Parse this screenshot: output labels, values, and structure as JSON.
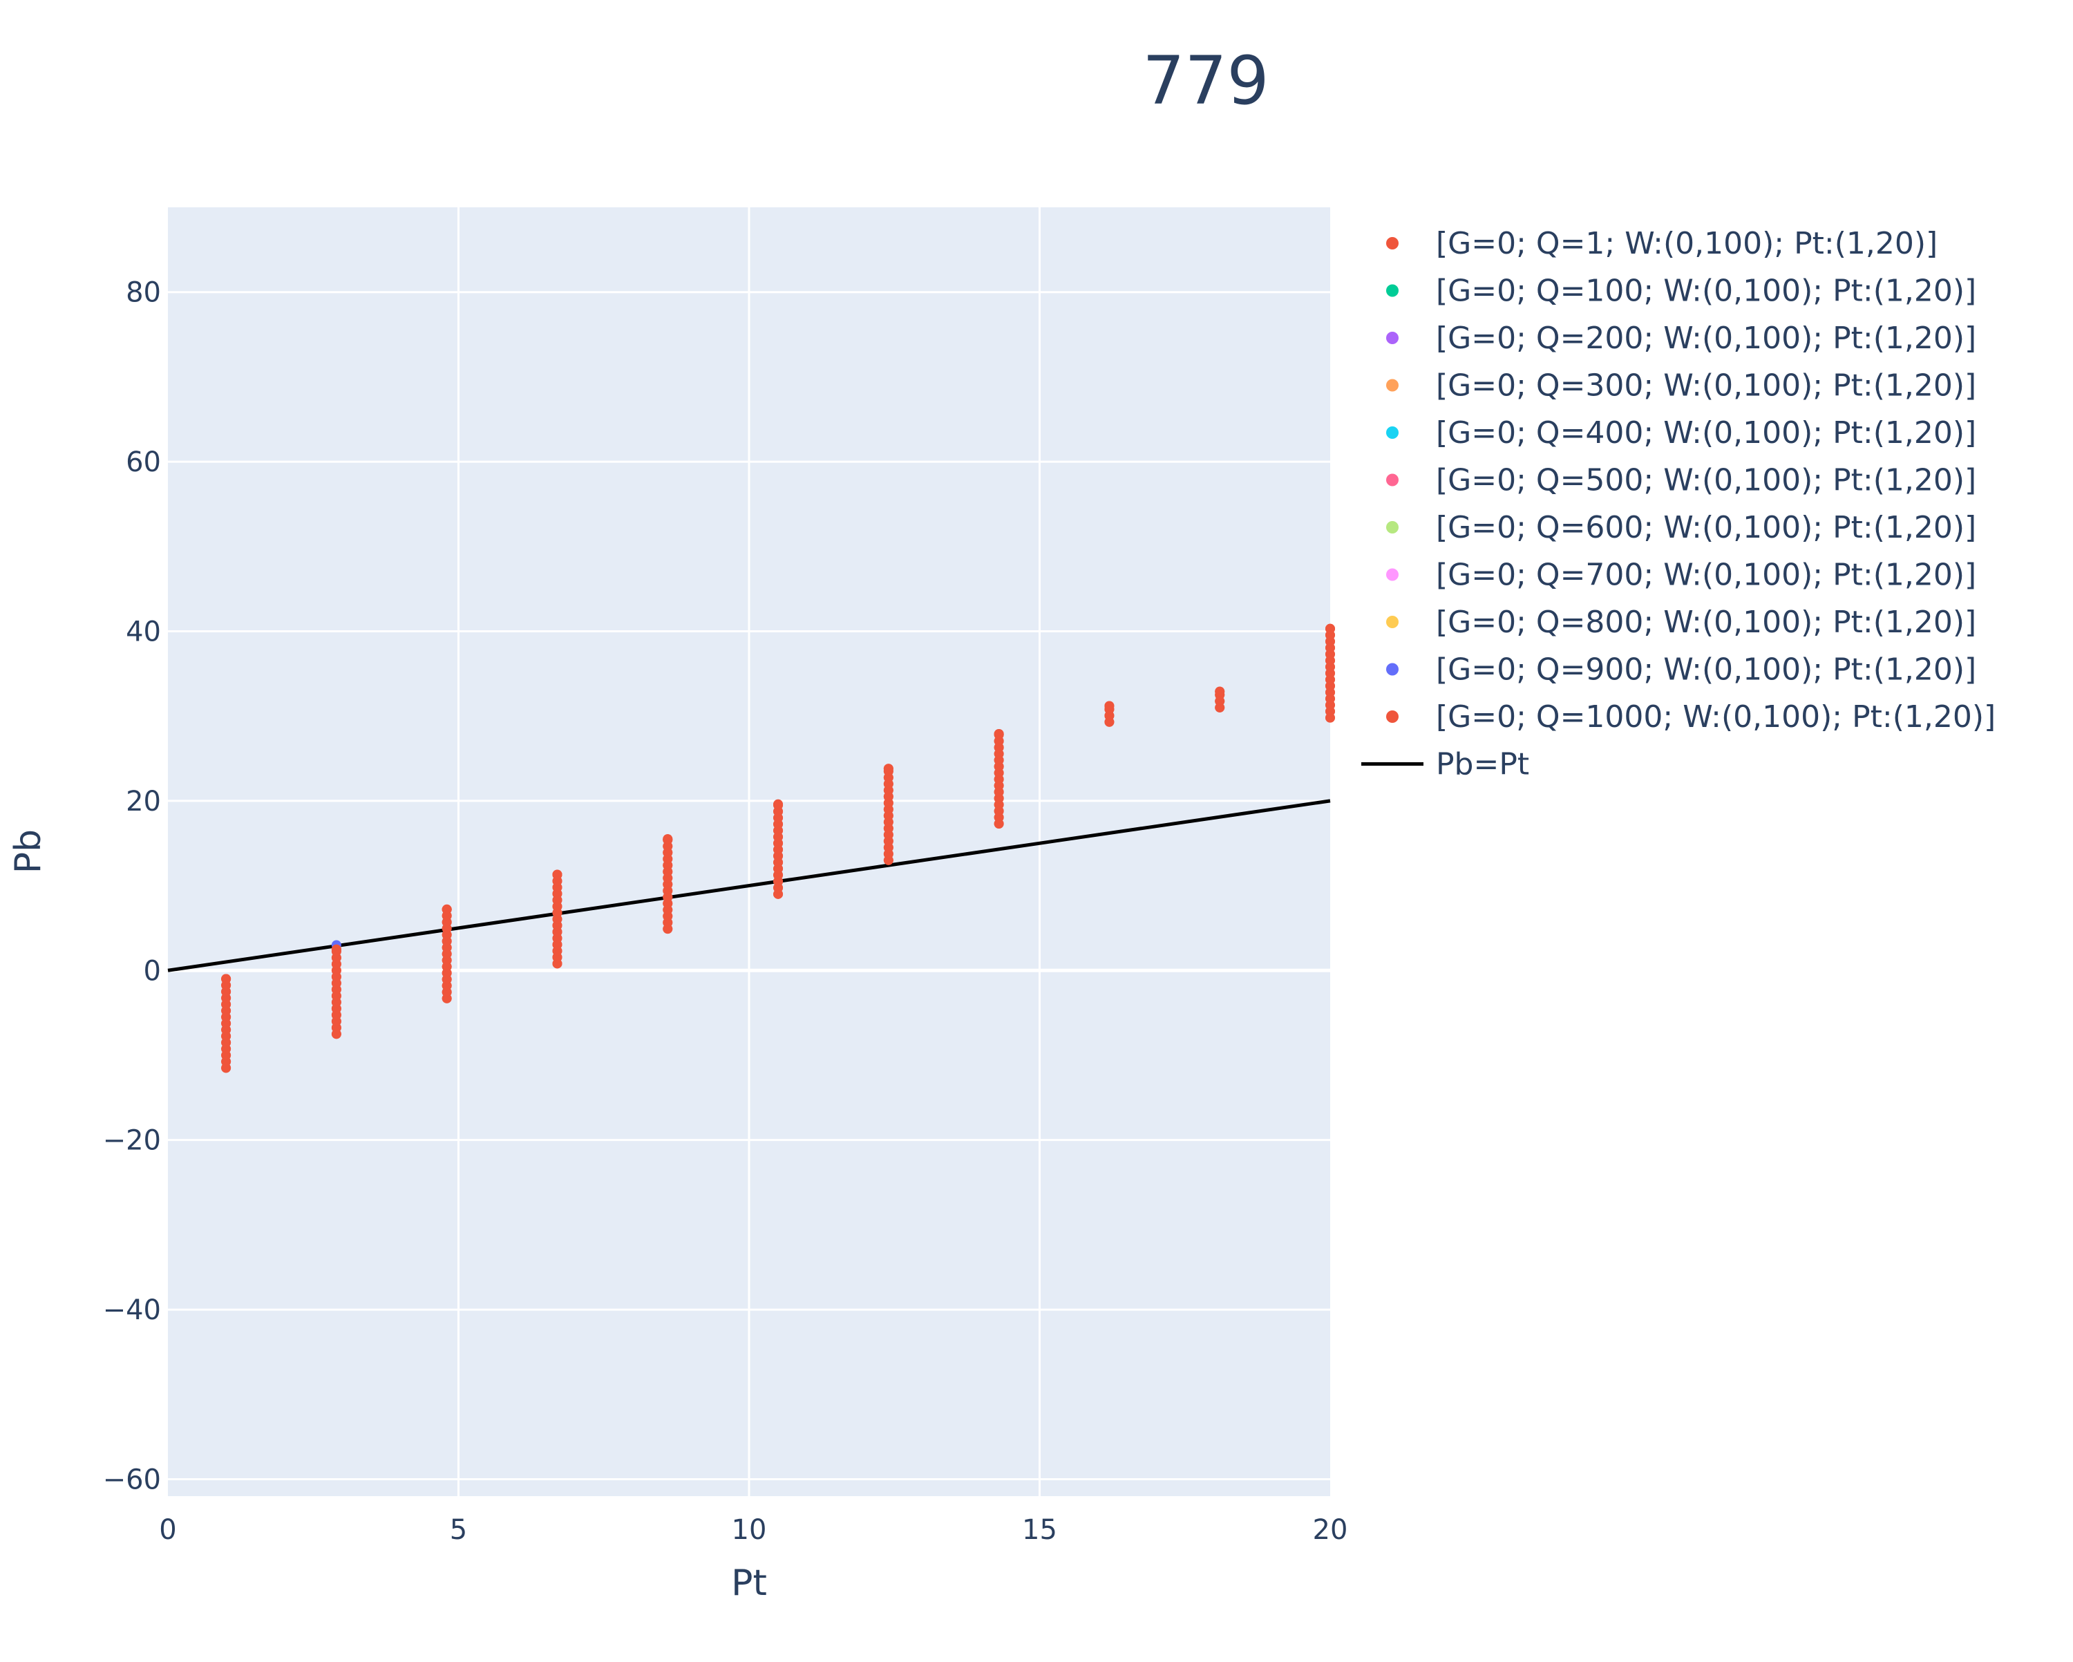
{
  "chart_data": {
    "type": "scatter",
    "title": "779",
    "xlabel": "Pt",
    "ylabel": "Pb",
    "xlim": [
      0,
      20
    ],
    "ylim": [
      -62,
      90
    ],
    "x_ticks": [
      0,
      5,
      10,
      15,
      20
    ],
    "y_ticks": [
      -60,
      -40,
      -20,
      0,
      20,
      40,
      60,
      80
    ],
    "x_tick_labels": [
      "0",
      "5",
      "10",
      "15",
      "20"
    ],
    "y_tick_labels": [
      "−60",
      "−40",
      "−20",
      "0",
      "20",
      "40",
      "60",
      "80"
    ],
    "grid": true,
    "legend_position": "right",
    "plot_background": "#e5ecf6",
    "series": [
      {
        "name": "[G=0; Q=1; W:(0,100); Pt:(1,20)]",
        "color": "#EF553B",
        "mode": "markers",
        "columns": [
          {
            "x": 1.0,
            "y_min": -11.5,
            "y_max": -1.0
          },
          {
            "x": 2.9,
            "y_min": -7.5,
            "y_max": 2.5
          },
          {
            "x": 4.8,
            "y_min": -3.3,
            "y_max": 7.2
          },
          {
            "x": 6.7,
            "y_min": 0.8,
            "y_max": 11.3
          },
          {
            "x": 8.6,
            "y_min": 4.9,
            "y_max": 15.5
          },
          {
            "x": 10.5,
            "y_min": 9.0,
            "y_max": 19.6
          },
          {
            "x": 12.4,
            "y_min": 13.0,
            "y_max": 23.8
          },
          {
            "x": 14.3,
            "y_min": 17.3,
            "y_max": 27.9
          },
          {
            "x": 16.2,
            "y_min": 29.3,
            "y_max": 31.2
          },
          {
            "x": 18.1,
            "y_min": 31.0,
            "y_max": 32.9
          },
          {
            "x": 20.0,
            "y_min": 29.8,
            "y_max": 40.3
          }
        ]
      },
      {
        "name": "[G=0; Q=100; W:(0,100); Pt:(1,20)]",
        "color": "#00cc96",
        "mode": "markers",
        "columns": []
      },
      {
        "name": "[G=0; Q=200; W:(0,100); Pt:(1,20)]",
        "color": "#ab63fa",
        "mode": "markers",
        "columns": []
      },
      {
        "name": "[G=0; Q=300; W:(0,100); Pt:(1,20)]",
        "color": "#FFA15A",
        "mode": "markers",
        "columns": []
      },
      {
        "name": "[G=0; Q=400; W:(0,100); Pt:(1,20)]",
        "color": "#19d3f3",
        "mode": "markers",
        "columns": []
      },
      {
        "name": "[G=0; Q=500; W:(0,100); Pt:(1,20)]",
        "color": "#FF6692",
        "mode": "markers",
        "columns": []
      },
      {
        "name": "[G=0; Q=600; W:(0,100); Pt:(1,20)]",
        "color": "#B6E880",
        "mode": "markers",
        "columns": []
      },
      {
        "name": "[G=0; Q=700; W:(0,100); Pt:(1,20)]",
        "color": "#FF97FF",
        "mode": "markers",
        "columns": []
      },
      {
        "name": "[G=0; Q=800; W:(0,100); Pt:(1,20)]",
        "color": "#FECB52",
        "mode": "markers",
        "columns": []
      },
      {
        "name": "[G=0; Q=900; W:(0,100); Pt:(1,20)]",
        "color": "#636efa",
        "mode": "markers",
        "points": [
          {
            "x": 2.9,
            "y": 3.0
          }
        ]
      },
      {
        "name": "[G=0; Q=1000; W:(0,100); Pt:(1,20)]",
        "color": "#EF553B",
        "mode": "markers",
        "columns": [
          {
            "x": 1.0,
            "y_min": -11.5,
            "y_max": -1.0
          },
          {
            "x": 2.9,
            "y_min": -7.5,
            "y_max": 2.5
          },
          {
            "x": 4.8,
            "y_min": -3.3,
            "y_max": 7.2
          },
          {
            "x": 6.7,
            "y_min": 0.8,
            "y_max": 11.3
          },
          {
            "x": 8.6,
            "y_min": 4.9,
            "y_max": 15.5
          },
          {
            "x": 10.5,
            "y_min": 9.0,
            "y_max": 19.6
          },
          {
            "x": 12.4,
            "y_min": 13.0,
            "y_max": 23.8
          },
          {
            "x": 14.3,
            "y_min": 17.3,
            "y_max": 27.9
          },
          {
            "x": 16.2,
            "y_min": 29.3,
            "y_max": 31.2
          },
          {
            "x": 18.1,
            "y_min": 31.0,
            "y_max": 32.9
          },
          {
            "x": 20.0,
            "y_min": 29.8,
            "y_max": 40.3
          }
        ]
      },
      {
        "name": "Pb=Pt",
        "color": "#000000",
        "mode": "line",
        "points": [
          {
            "x": 0,
            "y": 0
          },
          {
            "x": 20,
            "y": 20
          }
        ]
      }
    ]
  }
}
